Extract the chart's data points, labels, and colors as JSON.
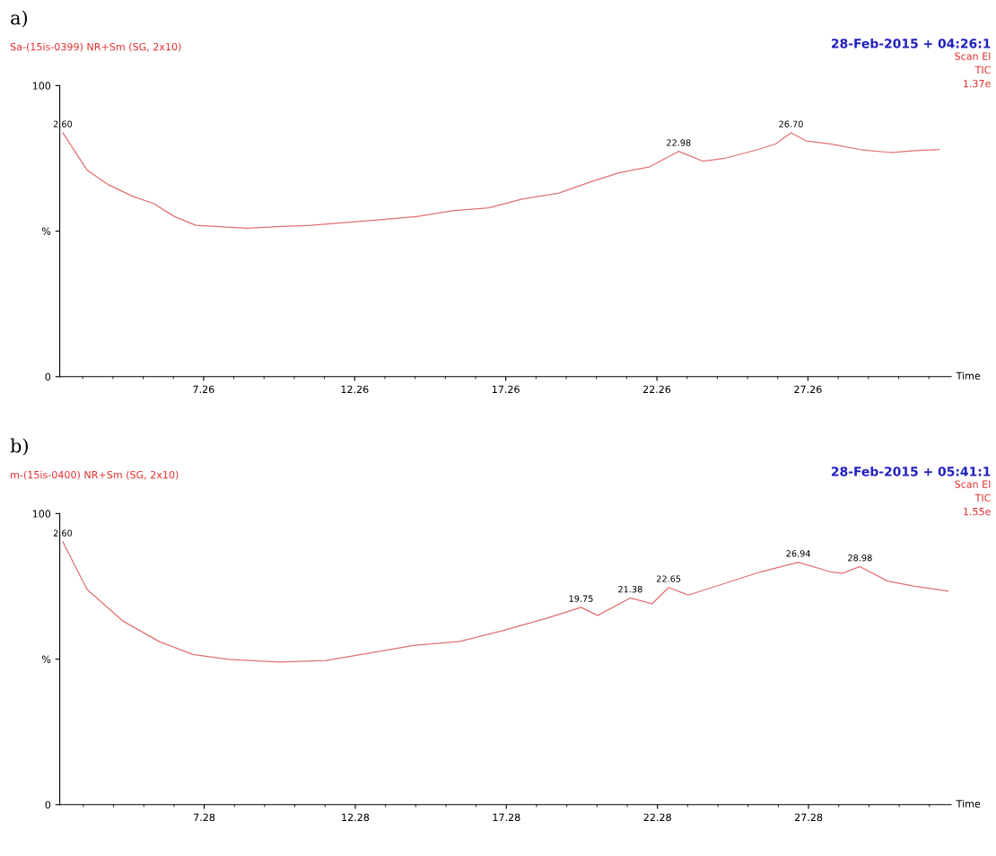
{
  "chart_data": [
    {
      "type": "line",
      "title": "a)",
      "subtitle": "Sa-(15is-0399) NR+Sm (SG, 2x10)",
      "xlabel": "Time",
      "annotations": [
        "28-Feb-2015 + 04:26:1",
        "Scan EI",
        "TIC",
        "1.37e",
        {
          "text": "2.60",
          "x": 2.6,
          "y": 83.8
        },
        {
          "text": "22.98",
          "x": 22.98,
          "y": 77.4
        },
        {
          "text": "26.70",
          "x": 26.7,
          "y": 83.8
        }
      ],
      "series": [
        {
          "color": "#e07070",
          "x": [
            2.6,
            3.4,
            4.1,
            4.9,
            5.6,
            6.3,
            7.0,
            7.8,
            8.7,
            9.7,
            10.8,
            12.0,
            13.2,
            14.3,
            15.5,
            16.7,
            17.8,
            19.0,
            20.1,
            21.0,
            22.0,
            22.98,
            23.8,
            24.5,
            25.6,
            26.2,
            26.7,
            27.2,
            28.0,
            29.0,
            30.0,
            30.6,
            31.6
          ],
          "values": [
            83.8,
            71,
            66,
            62,
            59.5,
            55,
            52,
            51.5,
            51,
            51.5,
            52,
            53,
            54,
            55,
            57,
            58,
            61,
            63,
            67,
            70,
            72,
            77.4,
            74,
            75,
            78,
            80,
            83.8,
            81,
            80,
            78,
            77,
            77.5,
            78
          ]
        }
      ],
      "xlim": [
        2.5,
        32.0
      ],
      "xticks": [
        7.26,
        12.26,
        17.26,
        22.26,
        27.26
      ],
      "ylim": [
        0,
        100
      ],
      "yticks": [
        0,
        {
          "value": 50,
          "label": "%"
        },
        100
      ],
      "grid": false
    },
    {
      "type": "line",
      "title": "b)",
      "subtitle": "m-(15is-0400) NR+Sm (SG, 2x10)",
      "xlabel": "Time",
      "annotations": [
        "28-Feb-2015 + 05:41:1",
        "Scan EI",
        "TIC",
        "1.55e",
        {
          "text": "2.60",
          "x": 2.6,
          "y": 90.3
        },
        {
          "text": "19.75",
          "x": 19.75,
          "y": 67.8
        },
        {
          "text": "21.38",
          "x": 21.38,
          "y": 71
        },
        {
          "text": "22.65",
          "x": 22.65,
          "y": 74.6
        },
        {
          "text": "26.94",
          "x": 26.94,
          "y": 83.3
        },
        {
          "text": "28.98",
          "x": 28.98,
          "y": 81.8
        }
      ],
      "series": [
        {
          "color": "#e07070",
          "x": [
            2.6,
            3.4,
            4.6,
            5.8,
            6.9,
            8.1,
            9.8,
            11.3,
            12.7,
            14.2,
            15.7,
            17.1,
            18.6,
            19.75,
            20.3,
            21.38,
            22.1,
            22.65,
            23.3,
            24.5,
            25.7,
            26.94,
            28.0,
            28.4,
            28.98,
            29.9,
            30.8,
            31.9
          ],
          "values": [
            90.3,
            74,
            63,
            56,
            51.6,
            49.9,
            49,
            49.5,
            52,
            54.7,
            56,
            59.6,
            64,
            67.8,
            65,
            71,
            69,
            74.6,
            72,
            76,
            80,
            83.3,
            80,
            79.5,
            81.8,
            76.8,
            75,
            73.4
          ]
        }
      ],
      "xlim": [
        2.5,
        32.0
      ],
      "xticks": [
        7.28,
        12.28,
        17.28,
        22.28,
        27.28
      ],
      "ylim": [
        0,
        100
      ],
      "yticks": [
        0,
        {
          "value": 50,
          "label": "%"
        },
        100
      ],
      "grid": false
    }
  ]
}
